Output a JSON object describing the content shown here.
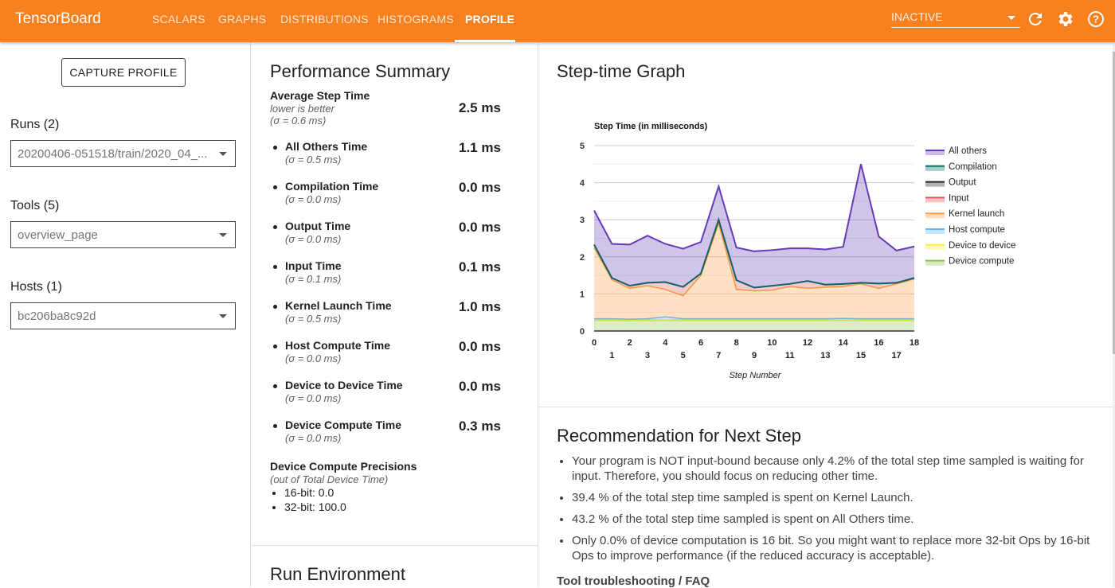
{
  "header": {
    "brand": "TensorBoard",
    "tabs": [
      "SCALARS",
      "GRAPHS",
      "DISTRIBUTIONS",
      "HISTOGRAMS",
      "PROFILE"
    ],
    "active_tab": "PROFILE",
    "status_select": "INACTIVE"
  },
  "sidebar": {
    "capture_button": "CAPTURE PROFILE",
    "runs_label": "Runs (2)",
    "runs_value": "20200406-051518/train/2020_04_...",
    "tools_label": "Tools (5)",
    "tools_value": "overview_page",
    "hosts_label": "Hosts (1)",
    "hosts_value": "bc206ba8c92d"
  },
  "summary": {
    "title": "Performance Summary",
    "avg": {
      "name": "Average Step Time",
      "note": "lower is better",
      "sigma": "(σ = 0.6 ms)",
      "value": "2.5 ms"
    },
    "metrics": [
      {
        "name": "All Others Time",
        "sigma": "(σ = 0.5 ms)",
        "value": "1.1 ms"
      },
      {
        "name": "Compilation Time",
        "sigma": "(σ = 0.0 ms)",
        "value": "0.0 ms"
      },
      {
        "name": "Output Time",
        "sigma": "(σ = 0.0 ms)",
        "value": "0.0 ms"
      },
      {
        "name": "Input Time",
        "sigma": "(σ = 0.1 ms)",
        "value": "0.1 ms"
      },
      {
        "name": "Kernel Launch Time",
        "sigma": "(σ = 0.5 ms)",
        "value": "1.0 ms"
      },
      {
        "name": "Host Compute Time",
        "sigma": "(σ = 0.0 ms)",
        "value": "0.0 ms"
      },
      {
        "name": "Device to Device Time",
        "sigma": "(σ = 0.0 ms)",
        "value": "0.0 ms"
      },
      {
        "name": "Device Compute Time",
        "sigma": "(σ = 0.0 ms)",
        "value": "0.3 ms"
      }
    ],
    "precision_title": "Device Compute Precisions",
    "precision_note": "(out of Total Device Time)",
    "precisions": [
      "16-bit: 0.0",
      "32-bit: 100.0"
    ],
    "run_env_title": "Run Environment"
  },
  "step_graph": {
    "title": "Step-time Graph"
  },
  "recommendation": {
    "title": "Recommendation for Next Step",
    "items": [
      "Your program is NOT input-bound because only 4.2% of the total step time sampled is waiting for input. Therefore, you should focus on reducing other time.",
      "39.4 % of the total step time sampled is spent on Kernel Launch.",
      "43.2 % of the total step time sampled is spent on All Others time.",
      "Only 0.0% of device computation is 16 bit. So you might want to replace more 32-bit Ops by 16-bit Ops to improve performance (if the reduced accuracy is acceptable)."
    ],
    "faq": "Tool troubleshooting / FAQ"
  },
  "chart_data": {
    "type": "area",
    "stacked": true,
    "title": "Step Time (in milliseconds)",
    "xlabel": "Step Number",
    "ylabel": "",
    "x": [
      0,
      1,
      2,
      3,
      4,
      5,
      6,
      7,
      8,
      9,
      10,
      11,
      12,
      13,
      14,
      15,
      16,
      17,
      18
    ],
    "ylim": [
      0,
      5
    ],
    "yticks": [
      0,
      1,
      2,
      3,
      4,
      5
    ],
    "legend_position": "right",
    "series": [
      {
        "name": "Device compute",
        "color": "#8bc34a",
        "values": [
          0.29,
          0.29,
          0.29,
          0.29,
          0.29,
          0.29,
          0.29,
          0.29,
          0.29,
          0.29,
          0.29,
          0.29,
          0.29,
          0.29,
          0.29,
          0.29,
          0.29,
          0.29,
          0.29
        ]
      },
      {
        "name": "Device to device",
        "color": "#ffeb3b",
        "values": [
          0.01,
          0.01,
          0.01,
          0.01,
          0.01,
          0.01,
          0.01,
          0.01,
          0.01,
          0.01,
          0.01,
          0.01,
          0.01,
          0.01,
          0.01,
          0.01,
          0.01,
          0.01,
          0.01
        ]
      },
      {
        "name": "Host compute",
        "color": "#64b5f6",
        "values": [
          0.03,
          0.03,
          0.02,
          0.03,
          0.08,
          0.03,
          0.03,
          0.03,
          0.03,
          0.03,
          0.03,
          0.03,
          0.03,
          0.03,
          0.04,
          0.03,
          0.03,
          0.03,
          0.03
        ]
      },
      {
        "name": "Kernel launch",
        "color": "#ff9f40",
        "values": [
          1.92,
          1.05,
          0.83,
          0.89,
          0.74,
          0.62,
          1.17,
          2.57,
          0.79,
          0.75,
          0.77,
          0.87,
          0.82,
          0.85,
          0.86,
          0.94,
          0.82,
          0.94,
          1.07
        ]
      },
      {
        "name": "Input",
        "color": "#d9534f",
        "values": [
          0.08,
          0.05,
          0.07,
          0.08,
          0.2,
          0.24,
          0.05,
          0.1,
          0.25,
          0.09,
          0.12,
          0.07,
          0.2,
          0.07,
          0.07,
          0.03,
          0.13,
          0.03,
          0.03
        ]
      },
      {
        "name": "Output",
        "color": "#222222",
        "values": [
          0,
          0,
          0,
          0,
          0,
          0,
          0,
          0,
          0,
          0,
          0,
          0,
          0,
          0,
          0,
          0,
          0,
          0,
          0
        ]
      },
      {
        "name": "Compilation",
        "color": "#00695c",
        "values": [
          0,
          0,
          0,
          0,
          0,
          0,
          0,
          0,
          0,
          0,
          0,
          0,
          0,
          0,
          0,
          0,
          0,
          0,
          0
        ]
      },
      {
        "name": "All others",
        "color": "#673ab7",
        "values": [
          0.92,
          0.92,
          1.11,
          1.27,
          1.03,
          1.03,
          0.85,
          0.9,
          0.88,
          0.98,
          0.96,
          0.96,
          0.88,
          0.95,
          1.0,
          3.2,
          1.27,
          0.87,
          0.85
        ]
      }
    ]
  }
}
